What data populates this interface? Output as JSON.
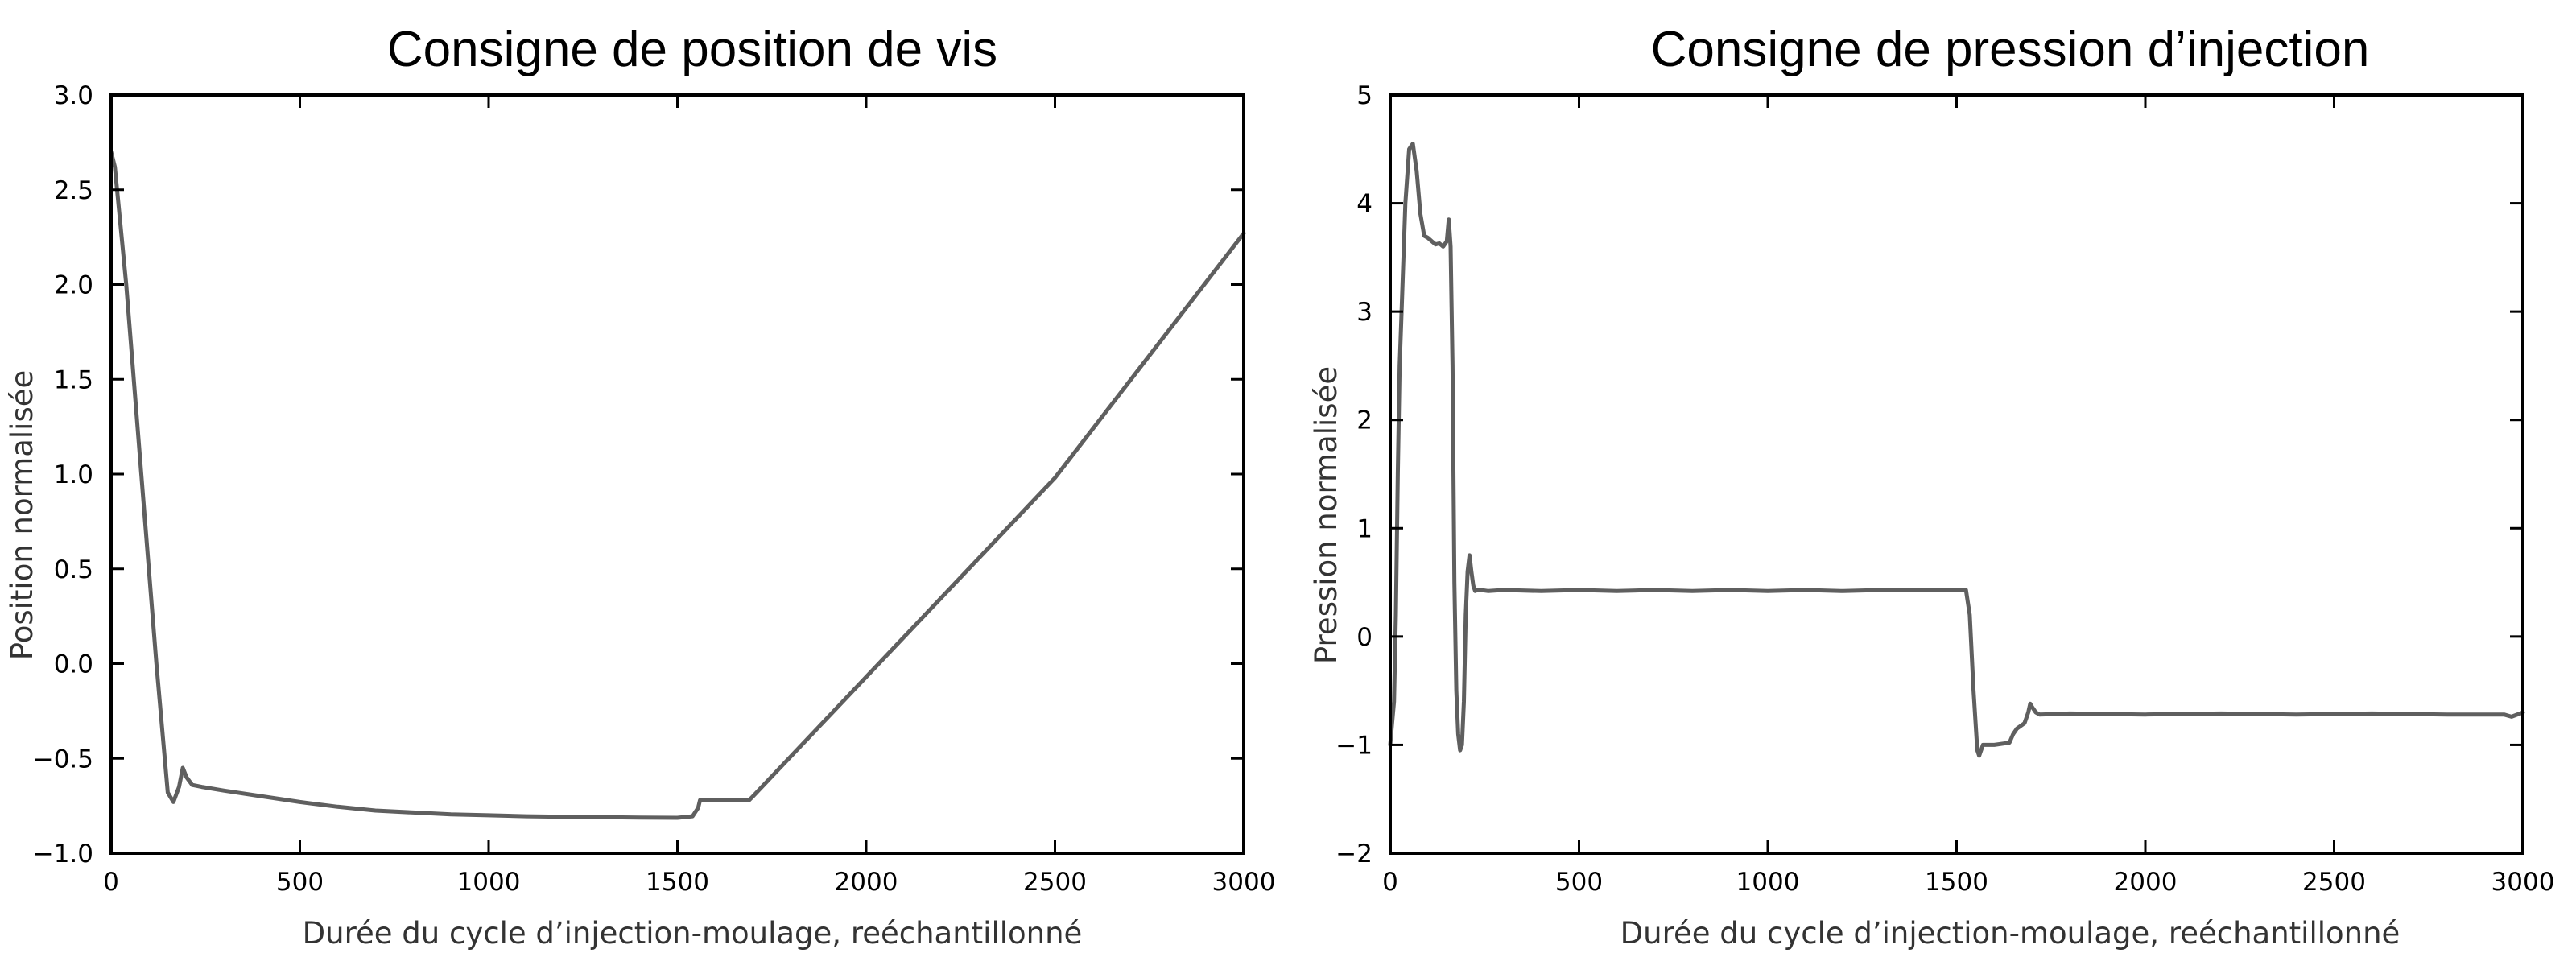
{
  "style": {
    "line_color": "#5f5f5f",
    "frame_color": "#000000",
    "background": "#ffffff"
  },
  "chart_data": [
    {
      "type": "line",
      "title": "Consigne de position de vis",
      "xlabel": "Durée du cycle d’injection-moulage, reéchantillonné",
      "ylabel": "Position normalisée",
      "xlim": [
        0,
        3000
      ],
      "ylim": [
        -1.0,
        3.0
      ],
      "xticks": [
        0,
        500,
        1000,
        1500,
        2000,
        2500,
        3000
      ],
      "yticks": [
        -1.0,
        -0.5,
        0.0,
        0.5,
        1.0,
        1.5,
        2.0,
        2.5,
        3.0
      ],
      "xtick_labels": [
        "0",
        "500",
        "1000",
        "1500",
        "2000",
        "2500",
        "3000"
      ],
      "ytick_labels": [
        "−1.0",
        "−0.5",
        "0.0",
        "0.5",
        "1.0",
        "1.5",
        "2.0",
        "2.5",
        "3.0"
      ],
      "grid": false,
      "series": [
        {
          "x": [
            0,
            10,
            40,
            80,
            120,
            150,
            165,
            180,
            190,
            200,
            215,
            240,
            300,
            400,
            500,
            600,
            700,
            800,
            900,
            1000,
            1100,
            1200,
            1300,
            1400,
            1500,
            1540,
            1555,
            1560,
            1600,
            1650,
            1690,
            1700,
            2000,
            2500,
            3000
          ],
          "y": [
            2.7,
            2.62,
            2.0,
            1.0,
            0.0,
            -0.68,
            -0.73,
            -0.65,
            -0.55,
            -0.6,
            -0.64,
            -0.65,
            -0.67,
            -0.7,
            -0.73,
            -0.755,
            -0.775,
            -0.785,
            -0.795,
            -0.8,
            -0.805,
            -0.808,
            -0.81,
            -0.812,
            -0.813,
            -0.805,
            -0.76,
            -0.72,
            -0.72,
            -0.72,
            -0.72,
            -0.7,
            -0.07,
            0.98,
            2.27
          ]
        }
      ]
    },
    {
      "type": "line",
      "title": "Consigne de pression d’injection",
      "xlabel": "Durée du cycle d’injection-moulage, reéchantillonné",
      "ylabel": "Pression normalisée",
      "xlim": [
        0,
        3000
      ],
      "ylim": [
        -2,
        5
      ],
      "xticks": [
        0,
        500,
        1000,
        1500,
        2000,
        2500,
        3000
      ],
      "yticks": [
        -2,
        -1,
        0,
        1,
        2,
        3,
        4,
        5
      ],
      "xtick_labels": [
        "0",
        "500",
        "1000",
        "1500",
        "2000",
        "2500",
        "3000"
      ],
      "ytick_labels": [
        "−2",
        "−1",
        "0",
        "1",
        "2",
        "3",
        "4",
        "5"
      ],
      "grid": false,
      "series": [
        {
          "x": [
            0,
            5,
            10,
            15,
            20,
            25,
            30,
            40,
            50,
            60,
            70,
            80,
            90,
            100,
            110,
            120,
            130,
            140,
            150,
            155,
            160,
            165,
            170,
            175,
            180,
            185,
            190,
            195,
            200,
            205,
            210,
            215,
            220,
            225,
            230,
            240,
            260,
            300,
            400,
            500,
            600,
            700,
            800,
            900,
            1000,
            1100,
            1200,
            1300,
            1400,
            1500,
            1525,
            1535,
            1545,
            1555,
            1560,
            1570,
            1600,
            1640,
            1650,
            1660,
            1680,
            1690,
            1695,
            1700,
            1710,
            1720,
            1800,
            2000,
            2200,
            2400,
            2600,
            2800,
            2950,
            2970,
            3000
          ],
          "y": [
            -1.0,
            -0.8,
            -0.6,
            0.2,
            1.5,
            2.5,
            3.0,
            4.0,
            4.5,
            4.55,
            4.3,
            3.9,
            3.7,
            3.68,
            3.65,
            3.62,
            3.63,
            3.6,
            3.65,
            3.85,
            3.6,
            2.5,
            0.5,
            -0.5,
            -0.9,
            -1.05,
            -1.0,
            -0.6,
            0.2,
            0.6,
            0.75,
            0.6,
            0.47,
            0.42,
            0.43,
            0.43,
            0.42,
            0.43,
            0.42,
            0.43,
            0.42,
            0.43,
            0.42,
            0.43,
            0.42,
            0.43,
            0.42,
            0.43,
            0.43,
            0.43,
            0.43,
            0.2,
            -0.5,
            -1.05,
            -1.1,
            -1.0,
            -1.0,
            -0.98,
            -0.9,
            -0.85,
            -0.8,
            -0.7,
            -0.62,
            -0.65,
            -0.7,
            -0.72,
            -0.71,
            -0.72,
            -0.71,
            -0.72,
            -0.71,
            -0.72,
            -0.72,
            -0.74,
            -0.7
          ]
        }
      ]
    }
  ]
}
